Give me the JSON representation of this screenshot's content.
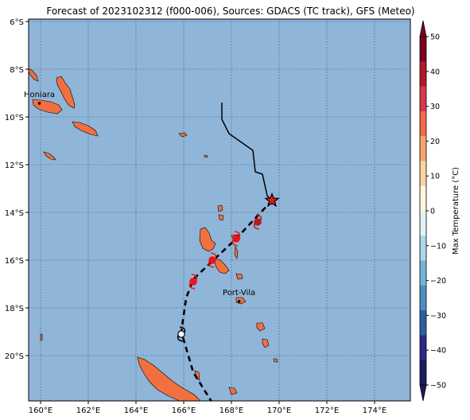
{
  "title": "Forecast of 2023102312 (f000-006), Sources: GDACS (TC track), GFS (Meteo)",
  "map": {
    "ocean_color": "#8fb5d9",
    "lon_range": [
      159.5,
      175.5
    ],
    "lat_range": [
      -21.9,
      -5.9
    ],
    "lon_ticks": [
      160,
      162,
      164,
      166,
      168,
      170,
      172,
      174
    ],
    "lon_tick_labels": [
      "160°E",
      "162°E",
      "164°E",
      "166°E",
      "168°E",
      "170°E",
      "172°E",
      "174°E"
    ],
    "lat_ticks": [
      -6,
      -8,
      -10,
      -12,
      -14,
      -16,
      -18,
      -20
    ],
    "lat_tick_labels": [
      "6°S",
      "8°S",
      "10°S",
      "12°S",
      "14°S",
      "16°S",
      "18°S",
      "20°S"
    ],
    "gridlines": true
  },
  "cities": [
    {
      "name": "Honiara",
      "lon": 159.95,
      "lat": -9.43
    },
    {
      "name": "Port-Vila",
      "lon": 168.32,
      "lat": -17.73
    }
  ],
  "track": {
    "past": [
      [
        167.6,
        -9.4
      ],
      [
        167.6,
        -10.1
      ],
      [
        167.9,
        -10.7
      ],
      [
        168.9,
        -11.4
      ],
      [
        169.0,
        -12.3
      ],
      [
        169.3,
        -12.4
      ],
      [
        169.5,
        -13.3
      ],
      [
        169.7,
        -13.5
      ]
    ],
    "forecast": [
      [
        169.7,
        -13.5
      ],
      [
        168.2,
        -15.1
      ],
      [
        166.4,
        -16.8
      ],
      [
        166.1,
        -17.6
      ],
      [
        165.9,
        -19.0
      ],
      [
        166.4,
        -20.7
      ],
      [
        167.15,
        -21.9
      ]
    ],
    "current_position": [
      169.7,
      -13.5
    ],
    "cyclone_symbols": [
      {
        "lon": 169.1,
        "lat": -14.4,
        "color": "#b71c1c"
      },
      {
        "lon": 168.2,
        "lat": -15.1,
        "color": "#e8161b"
      },
      {
        "lon": 167.2,
        "lat": -16.0,
        "color": "#e8161b"
      },
      {
        "lon": 166.4,
        "lat": -16.9,
        "color": "#e8161b"
      },
      {
        "lon": 165.9,
        "lat": -19.1,
        "color": "#ffffff"
      }
    ]
  },
  "colorbar": {
    "label": "Max Temperature (°C)",
    "ticks": [
      "50",
      "40",
      "30",
      "20",
      "10",
      "0",
      "−10",
      "−20",
      "−30",
      "−40",
      "−50"
    ],
    "colors": [
      "#7a0022",
      "#b2182b",
      "#d6384a",
      "#ef6a4c",
      "#f7a46c",
      "#fdd49e",
      "#fff5dc",
      "#e0f3f8",
      "#abd9e9",
      "#74b6d8",
      "#4d8fc4",
      "#2a5fa4",
      "#2b2a8c",
      "#1a1a60"
    ]
  },
  "land_color_warm": "#f07040",
  "land_color_hot": "#f7a46c"
}
